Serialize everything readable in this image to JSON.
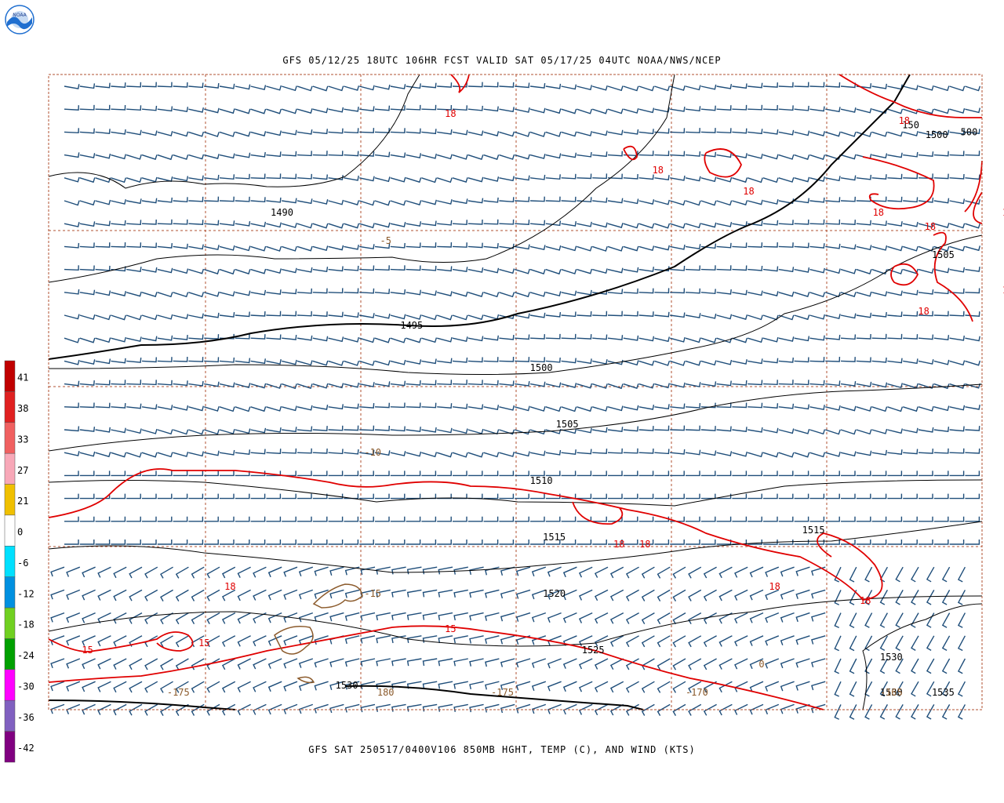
{
  "header": {
    "title": "GFS 05/12/25 18UTC 106HR FCST VALID SAT 05/17/25 04UTC NOAA/NWS/NCEP",
    "logo_text": "NOAA"
  },
  "footer": {
    "title": "GFS SAT 250517/0400V106 850MB HGHT, TEMP (C), AND WIND (KTS)"
  },
  "colors": {
    "barb": "#1f4e7a",
    "height_contour": "#000000",
    "temp_contour": "#e00000",
    "coast": "#8b5a2b",
    "grid": "#b05030"
  },
  "height_labels": [
    {
      "text": "1490",
      "lon": -207,
      "lat": 52
    },
    {
      "text": "1495",
      "lon": -197,
      "lat": 44
    },
    {
      "text": "1500",
      "lon": -187,
      "lat": 41
    },
    {
      "text": "1505",
      "lon": -185,
      "lat": 37
    },
    {
      "text": "1510",
      "lon": -187,
      "lat": 33
    },
    {
      "text": "1515",
      "lon": -186,
      "lat": 29
    },
    {
      "text": "1515",
      "lon": -166,
      "lat": 29.5
    },
    {
      "text": "1520",
      "lon": -186,
      "lat": 25
    },
    {
      "text": "1525",
      "lon": -183,
      "lat": 21
    },
    {
      "text": "1530",
      "lon": -202,
      "lat": 18.5
    },
    {
      "text": "1530",
      "lon": -160,
      "lat": 20.5
    },
    {
      "text": "1530",
      "lon": -160,
      "lat": 18
    },
    {
      "text": "1535",
      "lon": -156,
      "lat": 18
    },
    {
      "text": "1500",
      "lon": -156.5,
      "lat": 57.5
    },
    {
      "text": "500",
      "lon": -154,
      "lat": 57.7
    },
    {
      "text": "150",
      "lon": -158.5,
      "lat": 58.2
    },
    {
      "text": "1505",
      "lon": -156,
      "lat": 49
    }
  ],
  "temp_labels": [
    {
      "text": "18",
      "lon": -194,
      "lat": 59
    },
    {
      "text": "18",
      "lon": -178,
      "lat": 55
    },
    {
      "text": "18",
      "lon": -171,
      "lat": 53.5
    },
    {
      "text": "18",
      "lon": -159,
      "lat": 58.5
    },
    {
      "text": "18",
      "lon": -161,
      "lat": 52
    },
    {
      "text": "18",
      "lon": -157,
      "lat": 51
    },
    {
      "text": "18",
      "lon": -151,
      "lat": 52
    },
    {
      "text": "18",
      "lon": -151,
      "lat": 46.5
    },
    {
      "text": "18",
      "lon": -157.5,
      "lat": 45
    },
    {
      "text": "18",
      "lon": -181,
      "lat": 28.5
    },
    {
      "text": "18",
      "lon": -179,
      "lat": 28.5
    },
    {
      "text": "18",
      "lon": -169,
      "lat": 25.5
    },
    {
      "text": "18",
      "lon": -162,
      "lat": 24.5
    },
    {
      "text": "18",
      "lon": -211,
      "lat": 25.5
    },
    {
      "text": "15",
      "lon": -194,
      "lat": 22.5
    },
    {
      "text": "15",
      "lon": -222,
      "lat": 21
    },
    {
      "text": "15",
      "lon": -213,
      "lat": 21.5
    }
  ],
  "grid_labels": [
    {
      "text": "-5",
      "lon": -199,
      "lat": 50
    },
    {
      "text": "-10",
      "lon": -200,
      "lat": 35
    },
    {
      "text": "-15",
      "lon": -200,
      "lat": 25
    },
    {
      "text": "0",
      "lon": -170,
      "lat": 20
    },
    {
      "text": "-175",
      "lon": -215,
      "lat": 18
    },
    {
      "text": "180",
      "lon": -199,
      "lat": 18
    },
    {
      "text": "-175",
      "lon": -190,
      "lat": 18
    },
    {
      "text": "-170",
      "lon": -175,
      "lat": 18
    },
    {
      "text": "-165",
      "lon": -160,
      "lat": 18
    }
  ],
  "colorbar": {
    "labels": [
      "41",
      "38",
      "33",
      "27",
      "21",
      "0",
      "-6",
      "-12",
      "-18",
      "-24",
      "-30",
      "-36",
      "-42"
    ],
    "colors": [
      "#c00000",
      "#e02020",
      "#f06060",
      "#f8a8b8",
      "#f0c000",
      "#ffffff",
      "#00e0ff",
      "#0090e0",
      "#70d020",
      "#00a000",
      "#ff00ff",
      "#8060c0",
      "#800080"
    ]
  }
}
